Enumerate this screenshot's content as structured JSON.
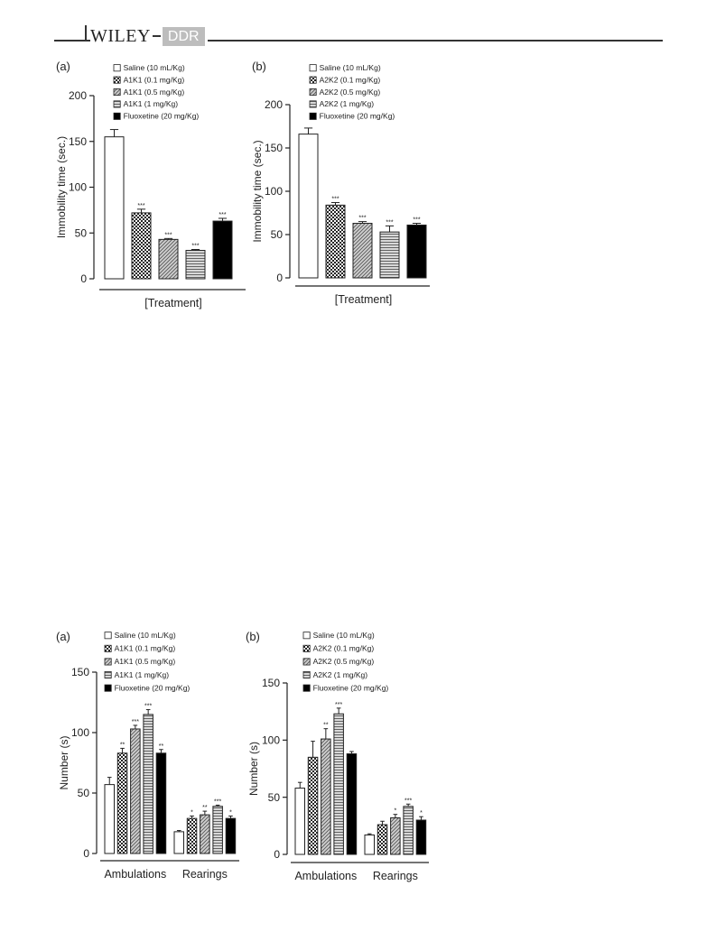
{
  "header": {
    "publisher": "WILEY",
    "journal": "DDR"
  },
  "figure_top": {
    "panels": [
      {
        "panel_label": "(a)",
        "legend": [
          "Saline (10 mL/Kg)",
          "A1K1 (0.1 mg/Kg)",
          "A1K1 (0.5 mg/Kg)",
          "A1K1 (1 mg/Kg)",
          "Fluoxetine (20 mg/Kg)"
        ],
        "ylabel": "Immobility time (sec.)",
        "xlabel": "[Treatment]",
        "yticks": [
          "0",
          "50",
          "100",
          "150",
          "200"
        ]
      },
      {
        "panel_label": "(b)",
        "legend": [
          "Saline (10 mL/Kg)",
          "A2K2 (0.1 mg/Kg)",
          "A2K2 (0.5 mg/Kg)",
          "A2K2 (1 mg/Kg)",
          "Fluoxetine (20 mg/Kg)"
        ],
        "ylabel": "Immobility time (sec.)",
        "xlabel": "[Treatment]",
        "yticks": [
          "0",
          "50",
          "100",
          "150",
          "200"
        ]
      }
    ]
  },
  "figure_bottom": {
    "panels": [
      {
        "panel_label": "(a)",
        "legend": [
          "Saline (10 mL/Kg)",
          "A1K1 (0.1 mg/Kg)",
          "A1K1 (0.5 mg/Kg)",
          "A1K1 (1 mg/Kg)",
          "Fluoxetine (20 mg/Kg)"
        ],
        "ylabel": "Number (s)",
        "groups": [
          "Ambulations",
          "Rearings"
        ],
        "yticks": [
          "0",
          "50",
          "100",
          "150"
        ]
      },
      {
        "panel_label": "(b)",
        "legend": [
          "Saline (10 mL/Kg)",
          "A2K2 (0.1 mg/Kg)",
          "A2K2 (0.5 mg/Kg)",
          "A2K2 (1 mg/Kg)",
          "Fluoxetine (20 mg/Kg)"
        ],
        "ylabel": "Number (s)",
        "groups": [
          "Ambulations",
          "Rearings"
        ],
        "yticks": [
          "0",
          "50",
          "100",
          "150"
        ]
      }
    ]
  },
  "chart_data": [
    {
      "type": "bar",
      "panel": "(a)",
      "ylabel": "Immobility time (sec.)",
      "xlabel": "[Treatment]",
      "ylim": [
        0,
        200
      ],
      "categories": [
        "Saline (10 mL/Kg)",
        "A1K1 (0.1 mg/Kg)",
        "A1K1 (0.5 mg/Kg)",
        "A1K1 (1 mg/Kg)",
        "Fluoxetine (20 mg/Kg)"
      ],
      "values": [
        155,
        72,
        43,
        31,
        63
      ],
      "errors": [
        8,
        4,
        1,
        1,
        3
      ],
      "significance": [
        "",
        "***",
        "***",
        "***",
        "***"
      ]
    },
    {
      "type": "bar",
      "panel": "(b)",
      "ylabel": "Immobility time (sec.)",
      "xlabel": "[Treatment]",
      "ylim": [
        0,
        200
      ],
      "categories": [
        "Saline (10 mL/Kg)",
        "A2K2 (0.1 mg/Kg)",
        "A2K2 (0.5 mg/Kg)",
        "A2K2 (1 mg/Kg)",
        "Fluoxetine (20 mg/Kg)"
      ],
      "values": [
        166,
        84,
        63,
        53,
        61
      ],
      "errors": [
        7,
        3,
        2,
        7,
        2
      ],
      "significance": [
        "",
        "***",
        "***",
        "***",
        "***"
      ]
    },
    {
      "type": "bar",
      "panel": "(a)",
      "ylabel": "Number (s)",
      "ylim": [
        0,
        150
      ],
      "categories": [
        "Ambulations",
        "Rearings"
      ],
      "series": [
        {
          "name": "Saline (10 mL/Kg)",
          "values": [
            57,
            18
          ],
          "errors": [
            6,
            1
          ],
          "significance": [
            "",
            ""
          ]
        },
        {
          "name": "A1K1 (0.1 mg/Kg)",
          "values": [
            83,
            29
          ],
          "errors": [
            4,
            2
          ],
          "significance": [
            "**",
            "*"
          ]
        },
        {
          "name": "A1K1 (0.5 mg/Kg)",
          "values": [
            103,
            32
          ],
          "errors": [
            3,
            3
          ],
          "significance": [
            "***",
            "**"
          ]
        },
        {
          "name": "A1K1 (1 mg/Kg)",
          "values": [
            115,
            39
          ],
          "errors": [
            4,
            1
          ],
          "significance": [
            "***",
            "***"
          ]
        },
        {
          "name": "Fluoxetine (20 mg/Kg)",
          "values": [
            83,
            29
          ],
          "errors": [
            3,
            2
          ],
          "significance": [
            "**",
            "*"
          ]
        }
      ]
    },
    {
      "type": "bar",
      "panel": "(b)",
      "ylabel": "Number (s)",
      "ylim": [
        0,
        150
      ],
      "categories": [
        "Ambulations",
        "Rearings"
      ],
      "series": [
        {
          "name": "Saline (10 mL/Kg)",
          "values": [
            58,
            17
          ],
          "errors": [
            5,
            1
          ],
          "significance": [
            "",
            ""
          ]
        },
        {
          "name": "A2K2 (0.1 mg/Kg)",
          "values": [
            85,
            26
          ],
          "errors": [
            14,
            3
          ],
          "significance": [
            "",
            ""
          ]
        },
        {
          "name": "A2K2 (0.5 mg/Kg)",
          "values": [
            101,
            32
          ],
          "errors": [
            9,
            3
          ],
          "significance": [
            "**",
            "*"
          ]
        },
        {
          "name": "A2K2 (1 mg/Kg)",
          "values": [
            123,
            42
          ],
          "errors": [
            5,
            2
          ],
          "significance": [
            "***",
            "***"
          ]
        },
        {
          "name": "Fluoxetine (20 mg/Kg)",
          "values": [
            88,
            30
          ],
          "errors": [
            2,
            3
          ],
          "significance": [
            "",
            "*"
          ]
        }
      ]
    }
  ]
}
